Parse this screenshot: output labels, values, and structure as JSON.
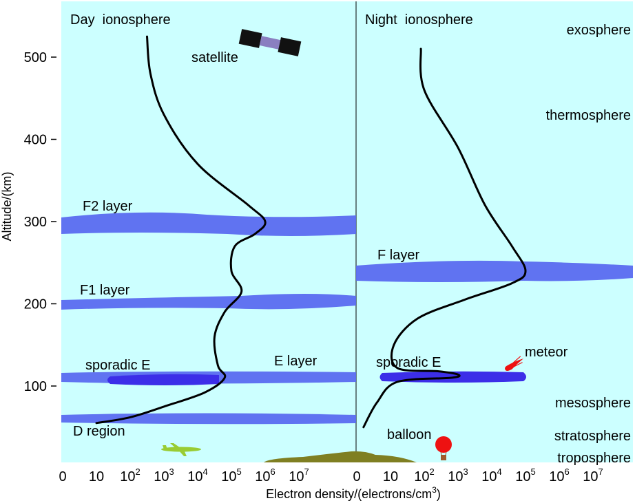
{
  "colors": {
    "background": "#ffffff",
    "sky": "#ccffff",
    "layer": "#5a6cf0",
    "sporadic": "#3c2ee8",
    "curve": "#000000",
    "ground": "#7f7f22",
    "plane": "#99cc33",
    "balloon": "#ee1111",
    "meteor": "#ee1111"
  },
  "panels": {
    "day_title": "Day  ionosphere",
    "night_title": "Night  ionosphere"
  },
  "atmosphere_regions": [
    "exosphere",
    "thermosphere",
    "mesosphere",
    "stratosphere",
    "troposphere"
  ],
  "layer_labels": {
    "f2": "F2 layer",
    "f1": "F1 layer",
    "e": "E layer",
    "sporadic_day": "sporadic E",
    "d": "D region",
    "f_night": "F layer",
    "sporadic_night": "sporadic E"
  },
  "objects": {
    "satellite": "satellite",
    "meteor": "meteor",
    "balloon": "balloon"
  },
  "icons": [
    "satellite-icon",
    "airplane-icon",
    "balloon-icon",
    "meteor-icon",
    "mountain-icon"
  ],
  "chart_data": {
    "type": "line",
    "ylabel": "Altitude/(km)",
    "xlabel": "Electron density/(electrons/cm",
    "xlabel_sup": "3",
    "xlabel_end": ")",
    "y_ticks": [
      100,
      200,
      300,
      400,
      500
    ],
    "x_tick_labels": [
      {
        "base": "0",
        "exp": ""
      },
      {
        "base": "10",
        "exp": ""
      },
      {
        "base": "10",
        "exp": "2"
      },
      {
        "base": "10",
        "exp": "3"
      },
      {
        "base": "10",
        "exp": "4"
      },
      {
        "base": "10",
        "exp": "5"
      },
      {
        "base": "10",
        "exp": "6"
      },
      {
        "base": "10",
        "exp": "7"
      }
    ],
    "series": [
      {
        "panel": "day",
        "points": [
          [
            1.0,
            55
          ],
          [
            2.0,
            62
          ],
          [
            3.0,
            75
          ],
          [
            4.2,
            92
          ],
          [
            4.8,
            110
          ],
          [
            4.6,
            125
          ],
          [
            4.5,
            160
          ],
          [
            4.8,
            190
          ],
          [
            5.3,
            215
          ],
          [
            5.0,
            240
          ],
          [
            5.1,
            270
          ],
          [
            5.7,
            285
          ],
          [
            6.0,
            300
          ],
          [
            5.5,
            320
          ],
          [
            4.0,
            370
          ],
          [
            3.0,
            430
          ],
          [
            2.6,
            480
          ],
          [
            2.5,
            525
          ]
        ]
      },
      {
        "panel": "night",
        "points": [
          [
            0.2,
            50
          ],
          [
            0.6,
            80
          ],
          [
            1.2,
            105
          ],
          [
            2.8,
            110
          ],
          [
            3.0,
            114
          ],
          [
            2.4,
            118
          ],
          [
            1.2,
            122
          ],
          [
            1.1,
            150
          ],
          [
            1.8,
            182
          ],
          [
            3.2,
            205
          ],
          [
            4.6,
            225
          ],
          [
            5.0,
            240
          ],
          [
            4.6,
            270
          ],
          [
            3.8,
            320
          ],
          [
            3.0,
            390
          ],
          [
            2.0,
            460
          ],
          [
            1.9,
            510
          ]
        ]
      }
    ]
  }
}
